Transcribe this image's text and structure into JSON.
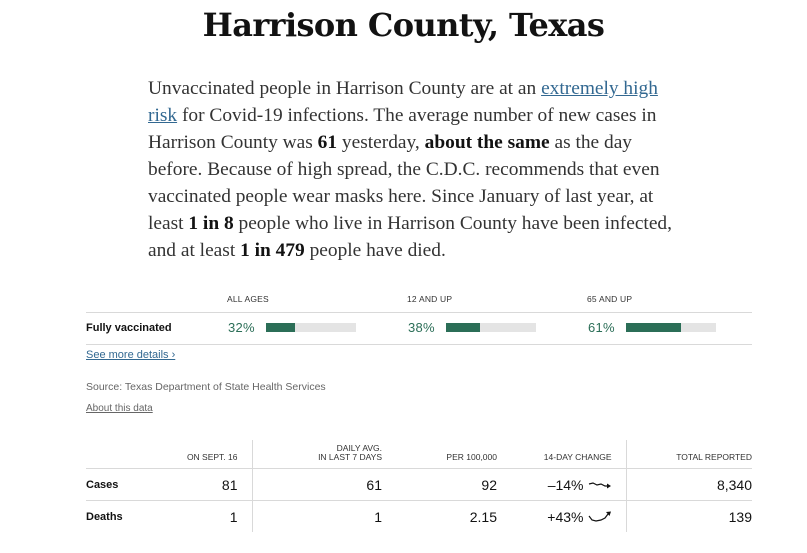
{
  "title": "Harrison County, Texas",
  "summary": {
    "p1": "Unvaccinated people in Harrison County are at an ",
    "risk_link": "extremely high risk",
    "p2": " for Covid-19 infections. The average number of new cases in Harrison County was ",
    "avg_cases": "61",
    "p3": " yesterday, ",
    "trend_phrase": "about the same",
    "p4": " as the day before. Because of high spread, the C.D.C. recommends that even vaccinated people wear masks here. Since January of last year, at least ",
    "infected_ratio": "1 in 8",
    "p5": " people who live in Harrison County have been infected, and at least ",
    "died_ratio": "1 in 479",
    "p6": " people have died."
  },
  "vaccination": {
    "headers": [
      "ALL AGES",
      "12 AND UP",
      "65 AND UP"
    ],
    "row_label": "Fully vaccinated",
    "values": [
      {
        "label": "32%",
        "fraction": 0.32
      },
      {
        "label": "38%",
        "fraction": 0.38
      },
      {
        "label": "61%",
        "fraction": 0.61
      }
    ]
  },
  "see_more": "See more details ›",
  "source": "Source: Texas Department of State Health Services",
  "about": "About this data",
  "stats_table": {
    "headers": {
      "date": "ON SEPT. 16",
      "daily_line1": "DAILY AVG.",
      "daily_line2": "IN LAST 7 DAYS",
      "per100k": "PER 100,000",
      "change": "14-DAY CHANGE",
      "total": "TOTAL REPORTED"
    },
    "rows": [
      {
        "label": "Cases",
        "on_date": "81",
        "daily_avg": "61",
        "per100k": "92",
        "change": "–14%",
        "total": "8,340",
        "trend_icon": "flat-down-arrow-icon"
      },
      {
        "label": "Deaths",
        "on_date": "1",
        "daily_avg": "1",
        "per100k": "2.15",
        "change": "+43%",
        "total": "139",
        "trend_icon": "up-arrow-icon"
      }
    ]
  },
  "colors": {
    "accent_green": "#2b6e57",
    "link_blue": "#326891",
    "bar_track": "#e4e4e4"
  }
}
